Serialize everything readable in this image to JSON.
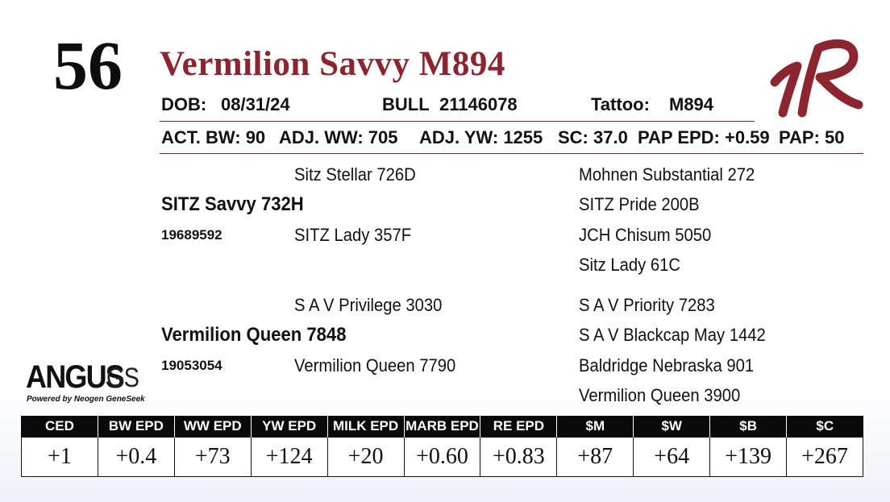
{
  "lot_number": "56",
  "animal_name": "Vermilion Savvy M894",
  "info": {
    "dob_label": "DOB:",
    "dob": "08/31/24",
    "sex": "BULL",
    "registration": "21146078",
    "tattoo_label": "Tattoo:",
    "tattoo": "M894"
  },
  "stats": {
    "act_bw": "ACT. BW: 90",
    "adj_ww": "ADJ. WW: 705",
    "adj_yw": "ADJ. YW: 1255",
    "sc": "SC: 37.0",
    "pap_epd": "PAP EPD: +0.59",
    "pap": "PAP: 50"
  },
  "pedigree": {
    "sire": {
      "name": "SITZ Savvy 732H",
      "registration": "19689592",
      "sire": "Sitz Stellar 726D",
      "dam": "SITZ Lady 357F",
      "sire_sire": "Mohnen Substantial 272",
      "sire_dam": "SITZ Pride 200B",
      "dam_sire": "JCH Chisum 5050",
      "dam_dam": "Sitz Lady 61C"
    },
    "dam": {
      "name": "Vermilion Queen 7848",
      "registration": "19053054",
      "sire": "S A V Privilege 3030",
      "dam": "Vermilion Queen 7790",
      "sire_sire": "S A V Priority 7283",
      "sire_dam": "S A V Blackcap May 1442",
      "dam_sire": "Baldridge Nebraska 901",
      "dam_dam": "Vermilion Queen 3900"
    }
  },
  "angus_logo": {
    "word": "ANGUS",
    "suffix": "GS",
    "tagline": "Powered by Neogen GeneSeek"
  },
  "epd_table": {
    "headers": [
      "CED",
      "BW EPD",
      "WW EPD",
      "YW EPD",
      "MILK EPD",
      "MARB EPD",
      "RE EPD",
      "$M",
      "$W",
      "$B",
      "$C"
    ],
    "values": [
      "+1",
      "+0.4",
      "+73",
      "+124",
      "+20",
      "+0.60",
      "+0.83",
      "+87",
      "+64",
      "+139",
      "+267"
    ]
  },
  "colors": {
    "accent": "#8b2530",
    "header_bg": "#0a0a0a"
  },
  "icons": {
    "brand_logo": "vr-script-logo-icon"
  }
}
